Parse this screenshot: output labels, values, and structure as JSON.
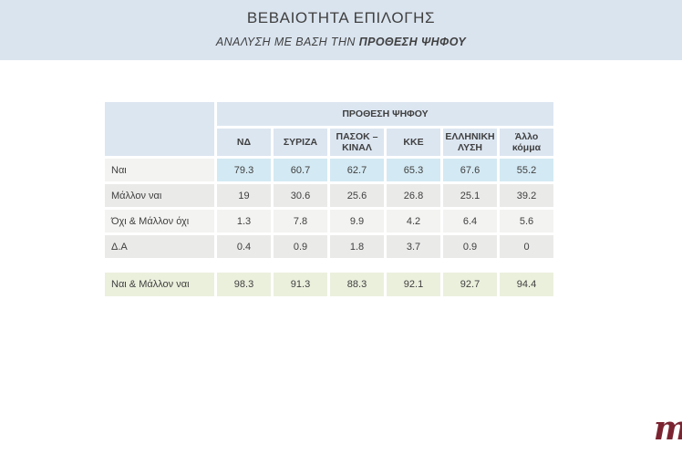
{
  "header": {
    "title": "ΒΕΒΑΙΟΤΗΤΑ ΕΠΙΛΟΓΗΣ",
    "subtitle_prefix": "ΑΝΑΛΥΣΗ ΜΕ ΒΑΣΗ ΤΗΝ ",
    "subtitle_emphasis": "ΠΡΟΘΕΣΗ ΨΗΦΟΥ"
  },
  "logo": {
    "text": "m",
    "color": "#7b2431"
  },
  "colors": {
    "banner_bg": "#dae4ef",
    "table_header_bg": "#dce6f1",
    "highlight_blue": "#d3e9f3",
    "band_light": "#f3f3f1",
    "band_dark": "#eaeae9",
    "summary_green": "#ebf0dd",
    "text": "#3f3f3f"
  },
  "chart_data": {
    "type": "table",
    "title": "ΒΕΒΑΙΟΤΗΤΑ ΕΠΙΛΟΓΗΣ",
    "subtitle": "ΑΝΑΛΥΣΗ ΜΕ ΒΑΣΗ ΤΗΝ ΠΡΟΘΕΣΗ ΨΗΦΟΥ",
    "group_header": "ΠΡΟΘΕΣΗ ΨΗΦΟΥ",
    "columns": [
      "ΝΔ",
      "ΣΥΡΙΖΑ",
      "ΠΑΣΟΚ – ΚΙΝΑΛ",
      "ΚΚΕ",
      "ΕΛΛΗΝΙΚΗ ΛΥΣΗ",
      "Άλλο κόμμα"
    ],
    "rows": [
      {
        "label": "Ναι",
        "values": [
          79.3,
          60.7,
          62.7,
          65.3,
          67.6,
          55.2
        ]
      },
      {
        "label": "Μάλλον ναι",
        "values": [
          19,
          30.6,
          25.6,
          26.8,
          25.1,
          39.2
        ]
      },
      {
        "label": "Όχι & Μάλλον όχι",
        "values": [
          1.3,
          7.8,
          9.9,
          4.2,
          6.4,
          5.6
        ]
      },
      {
        "label": "Δ.Α",
        "values": [
          0.4,
          0.9,
          1.8,
          3.7,
          0.9,
          0
        ]
      }
    ],
    "summary": {
      "label": "Ναι & Μάλλον ναι",
      "values": [
        98.3,
        91.3,
        88.3,
        92.1,
        92.7,
        94.4
      ]
    }
  }
}
